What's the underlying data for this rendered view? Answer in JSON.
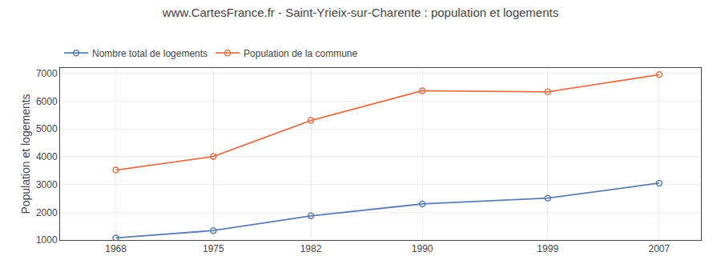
{
  "chart_data": {
    "type": "line",
    "title": "www.CartesFrance.fr - Saint-Yrieix-sur-Charente : population et logements",
    "ylabel": "Population et logements",
    "x": [
      1968,
      1975,
      1982,
      1990,
      1999,
      2007
    ],
    "series": [
      {
        "name": "Nombre total de logements",
        "color": "#5b7db1",
        "marker": "circle-open",
        "values": [
          1075,
          1340,
          1870,
          2300,
          2510,
          3050
        ]
      },
      {
        "name": "Population de la commune",
        "color": "#e0724a",
        "marker": "circle-open",
        "values": [
          3520,
          4010,
          5310,
          6380,
          6340,
          6960
        ]
      }
    ],
    "xlim": [
      1964,
      2010
    ],
    "xticks": [
      1968,
      1975,
      1982,
      1990,
      1999,
      2007
    ],
    "ylim": [
      1000,
      7200
    ],
    "yticks": [
      1000,
      2000,
      3000,
      4000,
      5000,
      6000,
      7000
    ],
    "grid": true,
    "legend": "upper left"
  }
}
